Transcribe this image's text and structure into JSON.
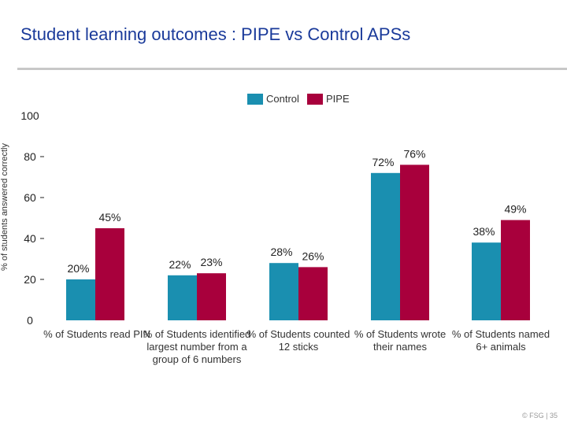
{
  "page": {
    "title": "Student learning outcomes : PIPE vs Control APSs",
    "footer": "© FSG | 35"
  },
  "chart_data": {
    "type": "bar",
    "title": "Student learning outcomes : PIPE vs Control APSs",
    "ylabel": "% of students answered correctly",
    "xlabel": "",
    "ylim": [
      0,
      100
    ],
    "yticks": [
      0,
      20,
      40,
      60,
      80,
      100
    ],
    "yticks_with_dash": [
      20,
      40,
      60,
      80
    ],
    "grid": false,
    "legend_position": "top-center",
    "categories": [
      "% of Students read PIN",
      "% of Students identified largest number from a group of 6 numbers",
      "% of Students counted 12 sticks",
      "% of Students wrote their names",
      "% of Students named 6+ animals"
    ],
    "series": [
      {
        "name": "Control",
        "color": "#1a8fb0",
        "values": [
          20,
          22,
          28,
          72,
          38
        ],
        "labels": [
          "20%",
          "22%",
          "28%",
          "72%",
          "38%"
        ]
      },
      {
        "name": "PIPE",
        "color": "#a8003c",
        "values": [
          45,
          23,
          26,
          76,
          49
        ],
        "labels": [
          "45%",
          "23%",
          "26%",
          "76%",
          "49%"
        ]
      }
    ]
  }
}
